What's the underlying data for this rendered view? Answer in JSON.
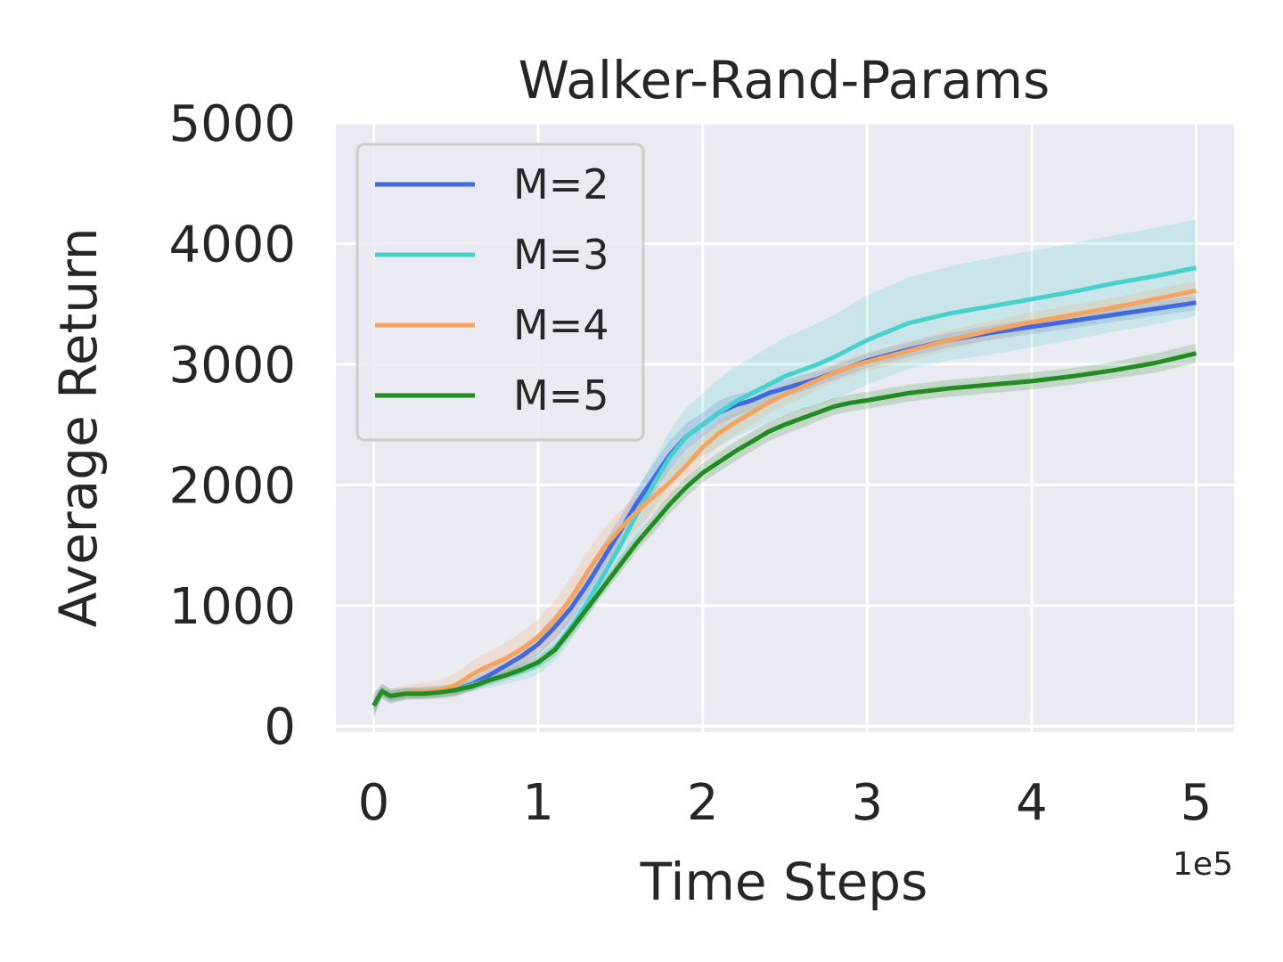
{
  "chart_data": {
    "type": "line",
    "title": "Walker-Rand-Params",
    "xlabel": "Time Steps",
    "ylabel": "Average Return",
    "x_offset_label": "1e5",
    "xlim": [
      -0.23,
      5.23
    ],
    "ylim": [
      -50,
      5000
    ],
    "xticks": [
      0,
      1,
      2,
      3,
      4,
      5
    ],
    "xtick_labels": [
      "0",
      "1",
      "2",
      "3",
      "4",
      "5"
    ],
    "yticks": [
      0,
      1000,
      2000,
      3000,
      4000,
      5000
    ],
    "ytick_labels": [
      "0",
      "1000",
      "2000",
      "3000",
      "4000",
      "5000"
    ],
    "grid": true,
    "legend_position": "top-left",
    "colors": {
      "background": "#eaeaf2",
      "grid": "#ffffff",
      "M2": "#4169e1",
      "M3": "#48d1cc",
      "M4": "#f4a460",
      "M5": "#228b22"
    },
    "x": [
      0,
      0.05,
      0.1,
      0.2,
      0.3,
      0.4,
      0.5,
      0.6,
      0.7,
      0.8,
      0.9,
      1.0,
      1.1,
      1.2,
      1.3,
      1.4,
      1.5,
      1.6,
      1.7,
      1.8,
      1.9,
      2.0,
      2.1,
      2.2,
      2.3,
      2.4,
      2.5,
      2.6,
      2.7,
      2.8,
      2.9,
      3.0,
      3.25,
      3.5,
      3.75,
      4.0,
      4.25,
      4.5,
      4.75,
      5.0
    ],
    "series": [
      {
        "name": "M=2",
        "color": "#4169e1",
        "values": [
          170,
          290,
          250,
          270,
          275,
          285,
          300,
          350,
          420,
          500,
          580,
          680,
          820,
          980,
          1180,
          1400,
          1620,
          1850,
          2050,
          2250,
          2400,
          2500,
          2600,
          2660,
          2700,
          2760,
          2800,
          2840,
          2880,
          2930,
          2980,
          3030,
          3120,
          3200,
          3260,
          3310,
          3360,
          3410,
          3460,
          3510
        ],
        "band": [
          100,
          60,
          60,
          50,
          50,
          50,
          50,
          50,
          60,
          70,
          80,
          90,
          100,
          110,
          110,
          120,
          120,
          120,
          120,
          120,
          110,
          100,
          100,
          90,
          80,
          80,
          70,
          70,
          60,
          60,
          60,
          60,
          60,
          60,
          60,
          60,
          60,
          60,
          60,
          60
        ]
      },
      {
        "name": "M=3",
        "color": "#48d1cc",
        "values": [
          170,
          290,
          250,
          270,
          275,
          285,
          300,
          340,
          380,
          420,
          460,
          520,
          640,
          820,
          1030,
          1260,
          1500,
          1760,
          2000,
          2230,
          2400,
          2500,
          2600,
          2690,
          2760,
          2830,
          2900,
          2950,
          3000,
          3060,
          3130,
          3200,
          3340,
          3420,
          3480,
          3540,
          3600,
          3670,
          3730,
          3800
        ],
        "band": [
          100,
          60,
          60,
          50,
          50,
          50,
          50,
          50,
          60,
          70,
          80,
          90,
          100,
          110,
          120,
          140,
          160,
          180,
          200,
          220,
          240,
          260,
          280,
          290,
          300,
          310,
          320,
          330,
          340,
          350,
          360,
          370,
          380,
          390,
          400,
          400,
          400,
          400,
          400,
          400
        ]
      },
      {
        "name": "M=4",
        "color": "#f4a460",
        "values": [
          170,
          290,
          250,
          280,
          290,
          300,
          340,
          430,
          500,
          560,
          640,
          740,
          880,
          1060,
          1280,
          1480,
          1640,
          1780,
          1900,
          2020,
          2160,
          2310,
          2430,
          2520,
          2600,
          2680,
          2750,
          2810,
          2870,
          2930,
          2980,
          3020,
          3110,
          3200,
          3280,
          3350,
          3410,
          3470,
          3540,
          3610
        ],
        "band": [
          100,
          60,
          60,
          60,
          70,
          80,
          100,
          110,
          120,
          130,
          140,
          150,
          160,
          170,
          170,
          160,
          150,
          140,
          130,
          120,
          110,
          110,
          110,
          100,
          100,
          90,
          90,
          90,
          80,
          80,
          80,
          80,
          80,
          80,
          80,
          80,
          80,
          80,
          80,
          80
        ]
      },
      {
        "name": "M=5",
        "color": "#228b22",
        "values": [
          170,
          290,
          250,
          270,
          270,
          280,
          300,
          330,
          380,
          420,
          470,
          530,
          630,
          800,
          980,
          1160,
          1340,
          1520,
          1680,
          1840,
          1980,
          2100,
          2190,
          2280,
          2360,
          2440,
          2500,
          2550,
          2600,
          2650,
          2680,
          2700,
          2760,
          2800,
          2830,
          2860,
          2900,
          2950,
          3010,
          3090
        ],
        "band": [
          60,
          40,
          40,
          40,
          40,
          40,
          40,
          40,
          40,
          40,
          40,
          50,
          50,
          60,
          60,
          60,
          70,
          70,
          80,
          80,
          80,
          80,
          80,
          80,
          80,
          80,
          80,
          80,
          70,
          70,
          70,
          70,
          70,
          70,
          70,
          70,
          70,
          70,
          80,
          80
        ]
      }
    ]
  }
}
